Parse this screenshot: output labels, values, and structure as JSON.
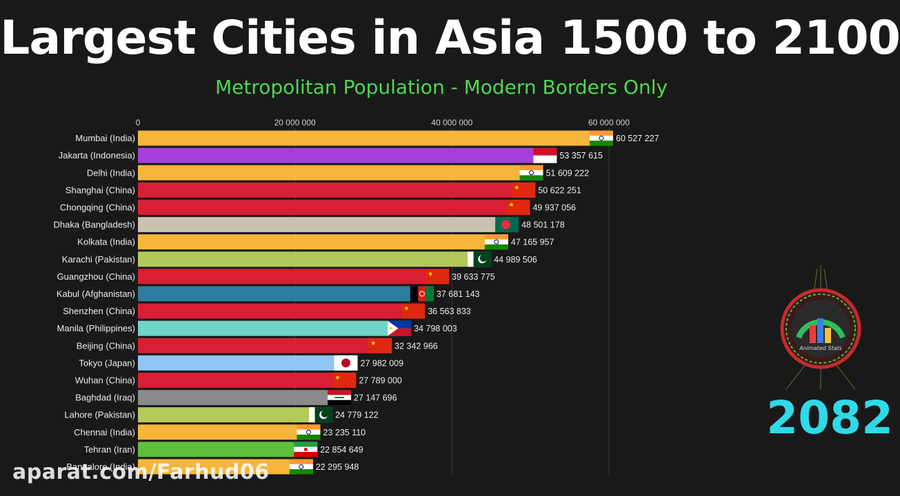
{
  "header": {
    "title": "Largest Cities in Asia 1500 to 2100",
    "subtitle": "Metropolitan Population - Modern Borders Only"
  },
  "year": "2082",
  "watermark": "aparat.com/Farhud06",
  "logo": {
    "text": "Animated Stats"
  },
  "chart_data": {
    "type": "bar",
    "orientation": "horizontal",
    "title": "Largest Cities in Asia 1500 to 2100",
    "subtitle": "Metropolitan Population - Modern Borders Only",
    "xlim": [
      0,
      60527227
    ],
    "ticks": [
      0,
      20000000,
      40000000,
      60000000
    ],
    "tick_labels": [
      "0",
      "20 000 000",
      "40 000 000",
      "60 000 000"
    ],
    "bars": [
      {
        "label": "Mumbai (India)",
        "value": 60527227,
        "value_label": "60 527 227",
        "color": "#f6b53b",
        "flag": "india"
      },
      {
        "label": "Jakarta (Indonesia)",
        "value": 53357615,
        "value_label": "53 357 615",
        "color": "#a63fd9",
        "flag": "indonesia"
      },
      {
        "label": "Delhi (India)",
        "value": 51609222,
        "value_label": "51 609 222",
        "color": "#f6b53b",
        "flag": "india"
      },
      {
        "label": "Shanghai (China)",
        "value": 50622251,
        "value_label": "50 622 251",
        "color": "#d81f33",
        "flag": "china"
      },
      {
        "label": "Chongqing (China)",
        "value": 49937056,
        "value_label": "49 937 056",
        "color": "#d81f33",
        "flag": "china"
      },
      {
        "label": "Dhaka (Bangladesh)",
        "value": 48501178,
        "value_label": "48 501 178",
        "color": "#c8c2ae",
        "flag": "bangladesh"
      },
      {
        "label": "Kolkata (India)",
        "value": 47165957,
        "value_label": "47 165 957",
        "color": "#f6b53b",
        "flag": "india"
      },
      {
        "label": "Karachi (Pakistan)",
        "value": 44989506,
        "value_label": "44 989 506",
        "color": "#b3c95a",
        "flag": "pakistan"
      },
      {
        "label": "Guangzhou (China)",
        "value": 39633775,
        "value_label": "39 633 775",
        "color": "#d81f33",
        "flag": "china"
      },
      {
        "label": "Kabul (Afghanistan)",
        "value": 37681143,
        "value_label": "37 681 143",
        "color": "#2e7ba0",
        "flag": "afghanistan"
      },
      {
        "label": "Shenzhen (China)",
        "value": 36563833,
        "value_label": "36 563 833",
        "color": "#d81f33",
        "flag": "china"
      },
      {
        "label": "Manila (Philippines)",
        "value": 34798003,
        "value_label": "34 798 003",
        "color": "#6fd4c8",
        "flag": "philippines"
      },
      {
        "label": "Beijing (China)",
        "value": 32342966,
        "value_label": "32 342 966",
        "color": "#d81f33",
        "flag": "china"
      },
      {
        "label": "Tokyo (Japan)",
        "value": 27982009,
        "value_label": "27 982 009",
        "color": "#8fc6f5",
        "flag": "japan"
      },
      {
        "label": "Wuhan (China)",
        "value": 27789000,
        "value_label": "27 789 000",
        "color": "#d81f33",
        "flag": "china"
      },
      {
        "label": "Baghdad (Iraq)",
        "value": 27147696,
        "value_label": "27 147 696",
        "color": "#8a8a8a",
        "flag": "iraq"
      },
      {
        "label": "Lahore (Pakistan)",
        "value": 24779122,
        "value_label": "24 779 122",
        "color": "#b3c95a",
        "flag": "pakistan"
      },
      {
        "label": "Chennai (India)",
        "value": 23235110,
        "value_label": "23 235 110",
        "color": "#f6b53b",
        "flag": "india"
      },
      {
        "label": "Tehran (Iran)",
        "value": 22854649,
        "value_label": "22 854 649",
        "color": "#5cc03a",
        "flag": "iran"
      },
      {
        "label": "Bangalore (India)",
        "value": 22295948,
        "value_label": "22 295 948",
        "color": "#f6b53b",
        "flag": "india"
      }
    ]
  }
}
